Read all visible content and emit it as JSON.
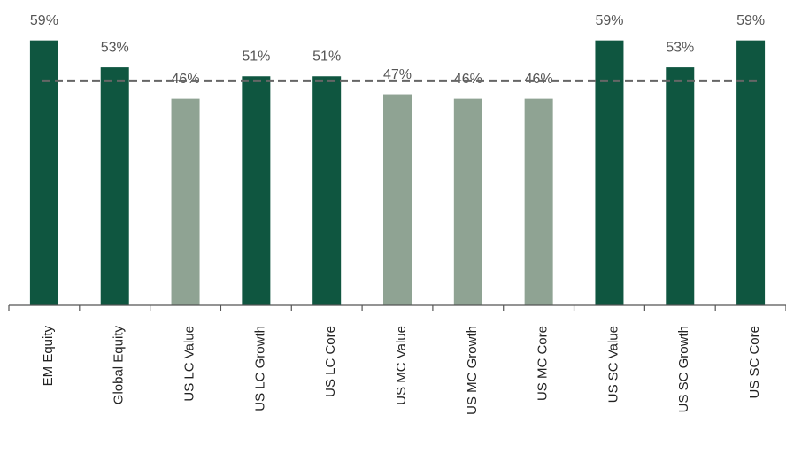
{
  "chart_data": {
    "type": "bar",
    "categories": [
      "EM Equity",
      "Global Equity",
      "US LC Value",
      "US LC Growth",
      "US LC Core",
      "US MC Value",
      "US MC Growth",
      "US MC Core",
      "US SC Value",
      "US SC Growth",
      "US SC Core"
    ],
    "values": [
      59,
      53,
      46,
      51,
      51,
      47,
      46,
      46,
      59,
      53,
      59
    ],
    "value_labels": [
      "59%",
      "53%",
      "46%",
      "51%",
      "51%",
      "47%",
      "46%",
      "46%",
      "59%",
      "53%",
      "59%"
    ],
    "colors": [
      "#0f5640",
      "#0f5640",
      "#8fa393",
      "#0f5640",
      "#0f5640",
      "#8fa393",
      "#8fa393",
      "#8fa393",
      "#0f5640",
      "#0f5640",
      "#0f5640"
    ],
    "ylim": [
      0,
      68
    ],
    "reference_line": 50,
    "reference_color": "#666666"
  }
}
